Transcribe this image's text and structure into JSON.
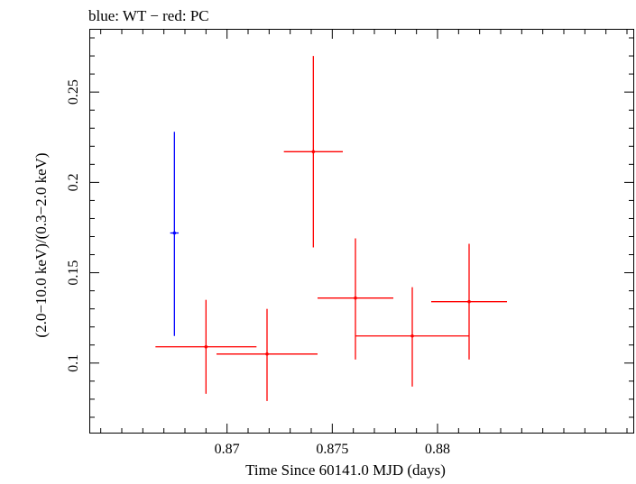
{
  "chart_data": {
    "type": "scatter",
    "title": "blue: WT − red: PC",
    "xlabel": "Time Since 60141.0 MJD (days)",
    "ylabel": "(2.0−10.0 keV)/(0.3−2.0 keV)",
    "xlim": [
      0.8635,
      0.8893
    ],
    "ylim": [
      0.0615,
      0.2845
    ],
    "x_ticks": [
      0.87,
      0.875,
      0.88
    ],
    "x_tick_labels": [
      "0.87",
      "0.875",
      "0.88"
    ],
    "y_ticks": [
      0.1,
      0.15,
      0.2,
      0.25
    ],
    "y_tick_labels": [
      "0.1",
      "0.15",
      "0.2",
      "0.25"
    ],
    "grid": false,
    "legend": "none",
    "series": [
      {
        "mode": "WT",
        "color": "#0000ff",
        "points": [
          {
            "x": 0.8675,
            "xerr": 0.0002,
            "y": 0.172,
            "yerr_low": 0.057,
            "yerr_high": 0.056
          }
        ]
      },
      {
        "mode": "PC",
        "color": "#ff0000",
        "points": [
          {
            "x": 0.869,
            "xerr": 0.0024,
            "y": 0.109,
            "yerr_low": 0.026,
            "yerr_high": 0.026
          },
          {
            "x": 0.8719,
            "xerr": 0.0024,
            "y": 0.105,
            "yerr_low": 0.026,
            "yerr_high": 0.025
          },
          {
            "x": 0.8741,
            "xerr": 0.0014,
            "y": 0.217,
            "yerr_low": 0.053,
            "yerr_high": 0.053
          },
          {
            "x": 0.8761,
            "xerr": 0.0018,
            "y": 0.136,
            "yerr_low": 0.034,
            "yerr_high": 0.033
          },
          {
            "x": 0.8788,
            "xerr": 0.0027,
            "y": 0.115,
            "yerr_low": 0.028,
            "yerr_high": 0.027
          },
          {
            "x": 0.8815,
            "xerr": 0.0018,
            "y": 0.134,
            "yerr_low": 0.032,
            "yerr_high": 0.032
          }
        ]
      }
    ]
  }
}
